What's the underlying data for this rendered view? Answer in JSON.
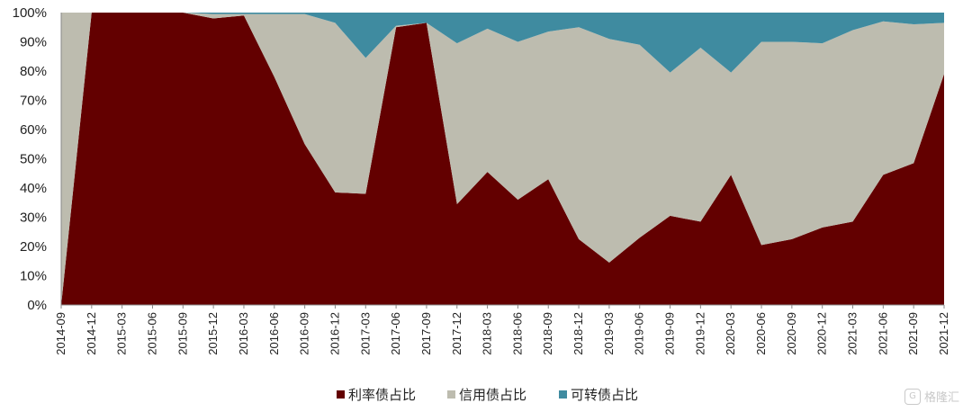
{
  "chart_data": {
    "type": "area",
    "stacked": true,
    "categories": [
      "2014-09",
      "2014-12",
      "2015-03",
      "2015-06",
      "2015-09",
      "2015-12",
      "2016-03",
      "2016-06",
      "2016-09",
      "2016-12",
      "2017-03",
      "2017-06",
      "2017-09",
      "2017-12",
      "2018-03",
      "2018-06",
      "2018-09",
      "2018-12",
      "2019-03",
      "2019-06",
      "2019-09",
      "2019-12",
      "2020-03",
      "2020-06",
      "2020-09",
      "2020-12",
      "2021-03",
      "2021-06",
      "2021-09",
      "2021-12"
    ],
    "series": [
      {
        "name": "利率债占比",
        "color": "#630000",
        "values": [
          0,
          100,
          100,
          100,
          100,
          98,
          99,
          78,
          55,
          38.5,
          38,
          95,
          96.5,
          34.5,
          45.5,
          36,
          43,
          22.5,
          14.5,
          23,
          30.5,
          28.5,
          44.5,
          20.5,
          22.5,
          26.5,
          28.5,
          44.5,
          48.5,
          79
        ]
      },
      {
        "name": "信用债占比",
        "color": "#bdbcaf",
        "values": [
          100,
          0,
          0,
          0,
          0,
          1.5,
          0.5,
          21.5,
          44.5,
          58,
          46.5,
          0.5,
          0,
          55,
          49,
          54,
          50.5,
          72.5,
          76.5,
          66,
          49,
          59.5,
          35,
          69.5,
          67.5,
          63,
          65.5,
          52.5,
          47.5,
          17.5
        ]
      },
      {
        "name": "可转债占比",
        "color": "#3f8ba0",
        "values": [
          0,
          0,
          0,
          0,
          0,
          0.5,
          0.5,
          0.5,
          0.5,
          3.5,
          15.5,
          4.5,
          3.5,
          10.5,
          5.5,
          10,
          6.5,
          5,
          9,
          11,
          20.5,
          12,
          20.5,
          10,
          10,
          10.5,
          6,
          3,
          4,
          3.5
        ]
      }
    ],
    "y_ticks": [
      "0%",
      "10%",
      "20%",
      "30%",
      "40%",
      "50%",
      "60%",
      "70%",
      "80%",
      "90%",
      "100%"
    ],
    "ylim": [
      0,
      100
    ],
    "legend_position": "bottom"
  },
  "watermark": {
    "text": "格隆汇",
    "icon": "g-logo-icon"
  }
}
